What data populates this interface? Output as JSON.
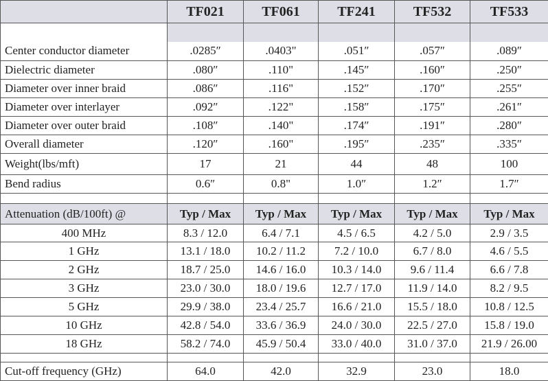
{
  "table": {
    "headers": [
      "TF021",
      "TF061",
      "TF241",
      "TF532",
      "TF533"
    ],
    "spec_rows": [
      {
        "label": "Center conductor diameter",
        "values": [
          ".0285″",
          ".0403\"",
          ".051″",
          ".057″",
          ".089″"
        ]
      },
      {
        "label": "Dielectric diameter",
        "values": [
          ".080″",
          ".110\"",
          ".145″",
          ".160″",
          ".250″"
        ]
      },
      {
        "label": "Diameter over inner braid",
        "values": [
          ".086″",
          ".116\"",
          ".152″",
          ".170″",
          ".255″"
        ]
      },
      {
        "label": "Diameter over interlayer",
        "values": [
          ".092″",
          ".122\"",
          ".158″",
          ".175″",
          ".261″"
        ]
      },
      {
        "label": "Diameter over outer braid",
        "values": [
          ".108″",
          ".140\"",
          ".174″",
          ".191″",
          ".280″"
        ]
      },
      {
        "label": "Overall diameter",
        "values": [
          ".120″",
          ".160\"",
          ".195″",
          ".235″",
          ".335″"
        ]
      },
      {
        "label": "Weight(lbs/mft)",
        "values": [
          "17",
          "21",
          "44",
          "48",
          "100"
        ]
      },
      {
        "label": "Bend radius",
        "values": [
          "0.6″",
          "0.8\"",
          "1.0″",
          "1.2″",
          "1.7″"
        ]
      }
    ],
    "attenuation": {
      "label": "Attenuation (dB/100ft) @",
      "subheaders": [
        "Typ / Max",
        "Typ / Max",
        "Typ / Max",
        "Typ / Max",
        "Typ / Max"
      ],
      "rows": [
        {
          "label": "400 MHz",
          "values": [
            "8.3 / 12.0",
            "6.4 / 7.1",
            "4.5 / 6.5",
            "4.2 / 5.0",
            "2.9 / 3.5"
          ]
        },
        {
          "label": "1 GHz",
          "values": [
            "13.1 / 18.0",
            "10.2 / 11.2",
            "7.2 / 10.0",
            "6.7 / 8.0",
            "4.6 / 5.5"
          ]
        },
        {
          "label": "2 GHz",
          "values": [
            "18.7 / 25.0",
            "14.6 / 16.0",
            "10.3 / 14.0",
            "9.6 / 11.4",
            "6.6 / 7.8"
          ]
        },
        {
          "label": "3 GHz",
          "values": [
            "23.0 / 30.0",
            "18.0 / 19.6",
            "12.7 / 17.0",
            "11.9 / 14.0",
            "8.2 / 9.5"
          ]
        },
        {
          "label": "5 GHz",
          "values": [
            "29.9 / 38.0",
            "23.4 / 25.7",
            "16.6 / 21.0",
            "15.5 / 18.0",
            "10.8 / 12.5"
          ]
        },
        {
          "label": "10 GHz",
          "values": [
            "42.8 / 54.0",
            "33.6 / 36.9",
            "24.0 / 30.0",
            "22.5 / 27.0",
            "15.8 / 19.0"
          ]
        },
        {
          "label": "18 GHz",
          "values": [
            "58.2 / 74.0",
            "45.9 / 50.4",
            "33.0 / 40.0",
            "31.0 / 37.0",
            "21.9 / 26.00"
          ]
        }
      ]
    },
    "cutoff": {
      "label": "Cut-off frequency (GHz)",
      "values": [
        "64.0",
        "42.0",
        "32.9",
        "23.0",
        "18.0"
      ]
    }
  }
}
